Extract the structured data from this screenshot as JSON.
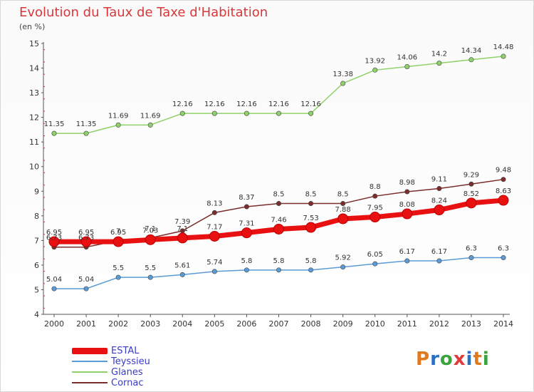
{
  "title": "Evolution du Taux de Taxe d'Habitation",
  "unit_label": "(en %)",
  "logo": {
    "text": "Proxiti",
    "colors": [
      "#e07a1c",
      "#2a6fc2",
      "#3aa33a",
      "#e03a3a",
      "#2a6fc2",
      "#e07a1c",
      "#3aa33a"
    ]
  },
  "chart_data": {
    "type": "line",
    "title": "Evolution du Taux de Taxe d'Habitation",
    "ylabel": "(en %)",
    "xlabel": "",
    "x": [
      "2000",
      "2001",
      "2002",
      "2003",
      "2004",
      "2005",
      "2006",
      "2007",
      "2008",
      "2009",
      "2010",
      "2011",
      "2012",
      "2013",
      "2014"
    ],
    "ylim": [
      4,
      15
    ],
    "yticks": [
      4,
      5,
      6,
      7,
      8,
      9,
      10,
      11,
      12,
      13,
      14,
      15
    ],
    "grid": false,
    "legend_position": "bottom-left",
    "series": [
      {
        "name": "ESTAL",
        "color": "#e81010",
        "values": [
          6.95,
          6.95,
          6.95,
          7.03,
          7.1,
          7.17,
          7.31,
          7.46,
          7.53,
          7.88,
          7.95,
          8.08,
          8.24,
          8.52,
          8.63
        ],
        "labels": [
          "6.95",
          "6.95",
          "6.95",
          "7.03",
          "7.1",
          "7.17",
          "7.31",
          "7.46",
          "7.53",
          "7.88",
          "7.95",
          "8.08",
          "8.24",
          "8.52",
          "8.63"
        ]
      },
      {
        "name": "Teyssieu",
        "color": "#5b9bd5",
        "values": [
          5.04,
          5.04,
          5.5,
          5.5,
          5.61,
          5.74,
          5.8,
          5.8,
          5.8,
          5.92,
          6.05,
          6.17,
          6.17,
          6.3,
          6.3
        ],
        "labels": [
          "5.04",
          "5.04",
          "5.5",
          "5.5",
          "5.61",
          "5.74",
          "5.8",
          "5.8",
          "5.8",
          "5.92",
          "6.05",
          "6.17",
          "6.17",
          "6.3",
          "6.3"
        ]
      },
      {
        "name": "Glanes",
        "color": "#8fd16a",
        "values": [
          11.35,
          11.35,
          11.69,
          11.69,
          12.16,
          12.16,
          12.16,
          12.16,
          12.16,
          13.38,
          13.92,
          14.06,
          14.2,
          14.34,
          14.48
        ],
        "labels": [
          "11.35",
          "11.35",
          "11.69",
          "11.69",
          "12.16",
          "12.16",
          "12.16",
          "12.16",
          "12.16",
          "13.38",
          "13.92",
          "14.06",
          "14.2",
          "14.34",
          "14.48"
        ]
      },
      {
        "name": "Cornac",
        "color": "#7b2d2d",
        "values": [
          6.73,
          6.73,
          7.0,
          7.1,
          7.39,
          8.13,
          8.37,
          8.5,
          8.5,
          8.5,
          8.8,
          8.98,
          9.11,
          9.29,
          9.48
        ],
        "labels": [
          "6.73",
          "6.73",
          "7",
          "7.1",
          "7.39",
          "8.13",
          "8.37",
          "8.5",
          "8.5",
          "8.5",
          "8.8",
          "8.98",
          "9.11",
          "9.29",
          "9.48"
        ]
      }
    ]
  }
}
